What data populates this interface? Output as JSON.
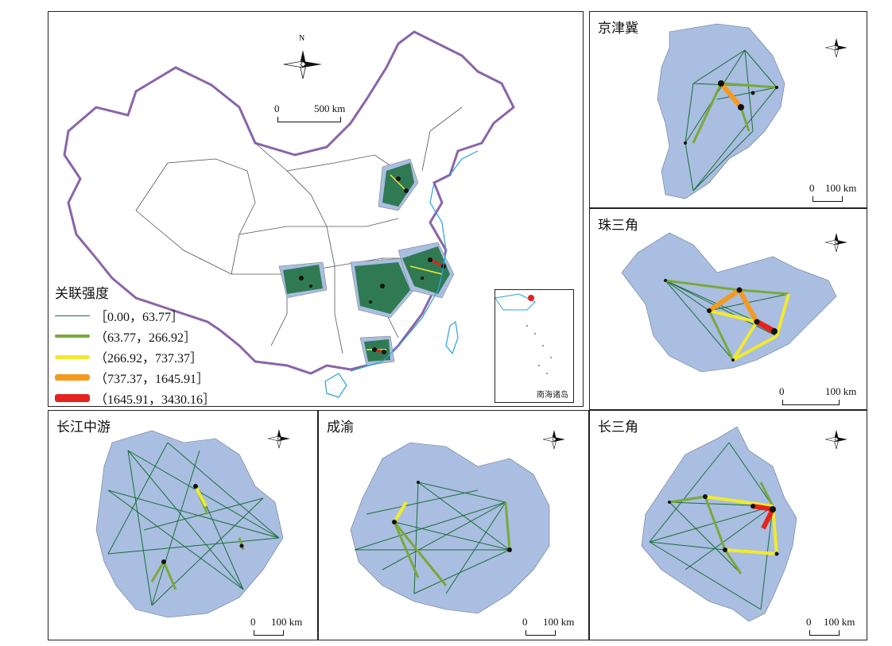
{
  "main_map": {
    "legend_title": "关联强度",
    "legend": [
      {
        "label": "［0.00，63.77］",
        "color": "#1a6e3a",
        "weight": 1
      },
      {
        "label": "（63.77，266.92］",
        "color": "#7aa83a",
        "weight": 4
      },
      {
        "label": "（266.92，737.37］",
        "color": "#f2ea2c",
        "weight": 5
      },
      {
        "label": "（737.37，1645.91］",
        "color": "#f39a1f",
        "weight": 8
      },
      {
        "label": "（1645.91，3430.16］",
        "color": "#e3231d",
        "weight": 10
      }
    ],
    "scale_zero": "0",
    "scale_max": "500 km",
    "inset_label": "南海诸岛",
    "north_label": "N"
  },
  "panels": [
    {
      "id": "jjj",
      "title": "京津冀",
      "scale_zero": "0",
      "scale_max": "100 km"
    },
    {
      "id": "zsj",
      "title": "珠三角",
      "scale_zero": "0",
      "scale_max": "100 km"
    },
    {
      "id": "cjzy",
      "title": "长江中游",
      "scale_zero": "0",
      "scale_max": "100 km"
    },
    {
      "id": "cy",
      "title": "成渝",
      "scale_zero": "0",
      "scale_max": "100 km"
    },
    {
      "id": "csj",
      "title": "长三角",
      "scale_zero": "0",
      "scale_max": "100 km"
    }
  ],
  "colors": {
    "region_fill": "#a9bee0",
    "china_border": "#8a64a8",
    "coast": "#2aa0dc",
    "node": "#111111"
  }
}
